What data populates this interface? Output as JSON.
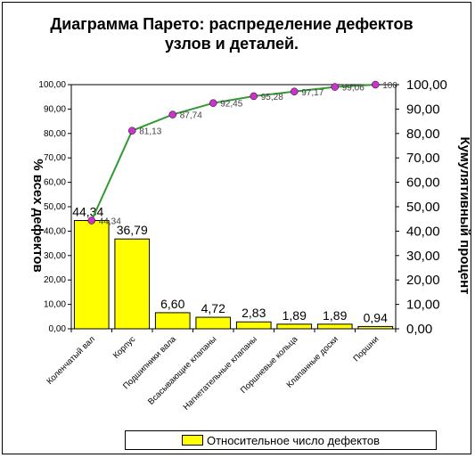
{
  "chart_data": {
    "type": "bar",
    "title": "Диаграмма Парето: распределение дефектов узлов и деталей.",
    "ylabel_left": "% всех дефектов",
    "ylabel_right": "Кумулятивный процент",
    "categories": [
      "Коленчатый вал",
      "Корпус",
      "Подшипники вала",
      "Всасывающие клапаны",
      "Нагнетательные клапаны",
      "Поршневые кольца",
      "Клапанные доски",
      "Поршни"
    ],
    "series": [
      {
        "name": "Относительное число дефектов",
        "type": "bar",
        "values": [
          44.34,
          36.79,
          6.6,
          4.72,
          2.83,
          1.89,
          1.89,
          0.94
        ]
      },
      {
        "type": "line",
        "values": [
          44.34,
          81.13,
          87.74,
          92.45,
          95.28,
          97.17,
          99.06,
          100
        ]
      }
    ],
    "bar_labels": [
      "44,34",
      "36,79",
      "6,60",
      "4,72",
      "2,83",
      "1,89",
      "1,89",
      "0,94"
    ],
    "line_labels": [
      "44,34",
      "81,13",
      "87,74",
      "92,45",
      "95,28",
      "97,17",
      "99,06",
      "100"
    ],
    "left_ticks": [
      "0,00",
      "10,00",
      "20,00",
      "30,00",
      "40,00",
      "50,00",
      "60,00",
      "70,00",
      "80,00",
      "90,00",
      "100,00"
    ],
    "right_ticks": [
      "0,00",
      "10,00",
      "20,00",
      "30,00",
      "40,00",
      "50,00",
      "60,00",
      "70,00",
      "80,00",
      "90,00",
      "100,00"
    ],
    "ylim": [
      0,
      100
    ],
    "legend": "bottom",
    "colors": {
      "bar": "#ffff00",
      "line": "#339933",
      "marker": "#cc33cc"
    }
  }
}
